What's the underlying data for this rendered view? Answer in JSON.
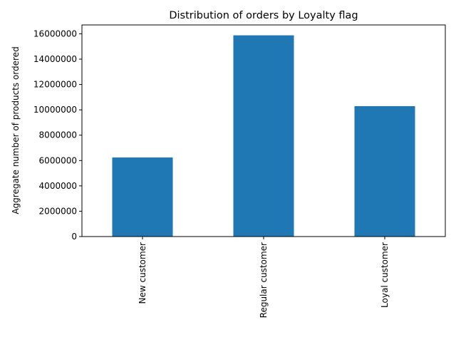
{
  "chart_data": {
    "type": "bar",
    "title": "Distribution of orders by Loyalty flag",
    "xlabel": "",
    "ylabel": "Aggregate number of products ordered",
    "categories": [
      "New customer",
      "Regular customer",
      "Loyal customer"
    ],
    "values": [
      6240000,
      15880000,
      10290000
    ],
    "ylim": [
      0,
      16700000
    ],
    "yticks": [
      0,
      2000000,
      4000000,
      6000000,
      8000000,
      10000000,
      12000000,
      14000000,
      16000000
    ],
    "ytick_labels": [
      "0",
      "2000000",
      "4000000",
      "6000000",
      "8000000",
      "10000000",
      "12000000",
      "14000000",
      "16000000"
    ],
    "bar_color": "#1f77b4",
    "grid": false,
    "legend": "none"
  }
}
